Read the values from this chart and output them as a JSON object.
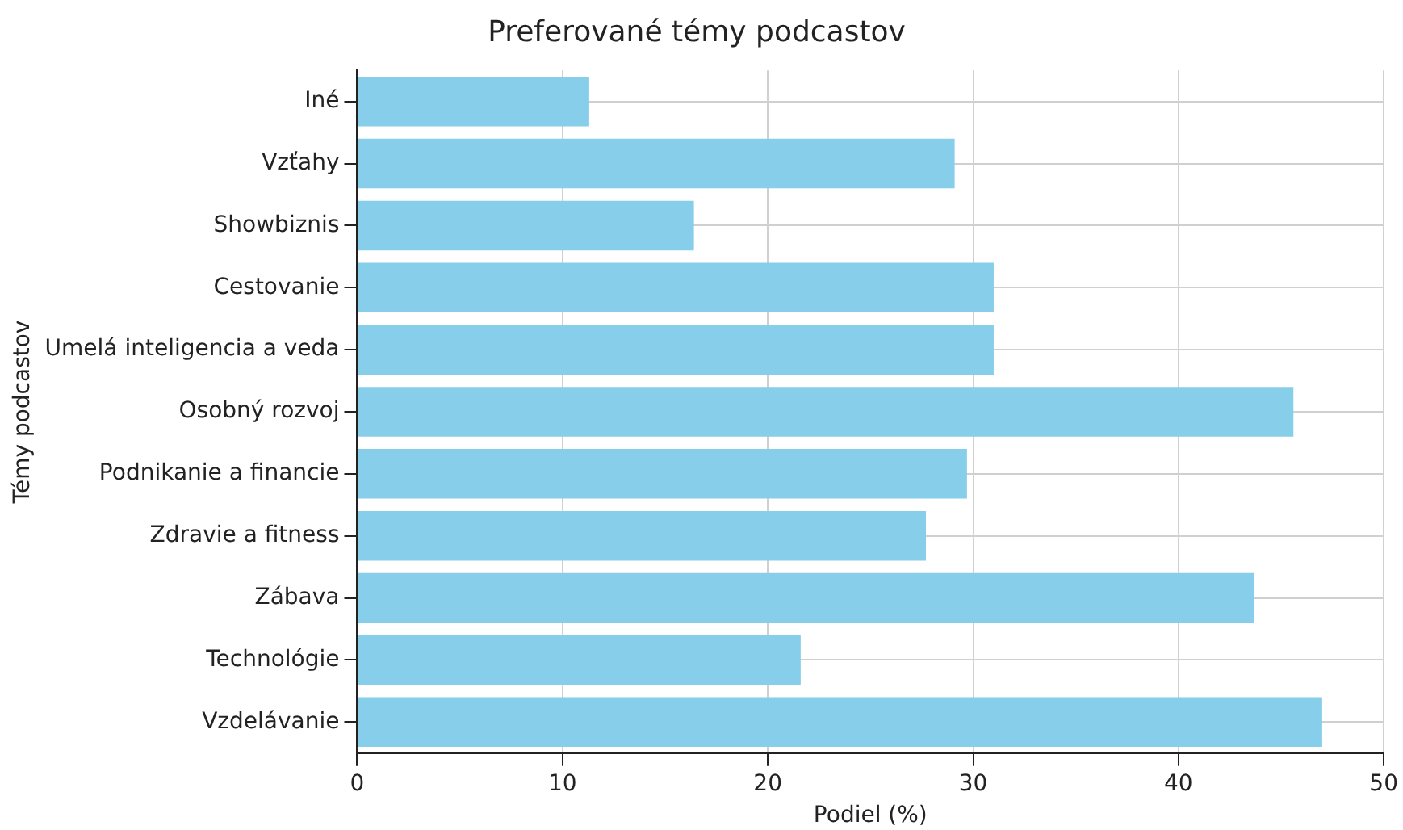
{
  "chart_data": {
    "type": "bar",
    "orientation": "horizontal",
    "title": "Preferované témy podcastov",
    "xlabel": "Podiel (%)",
    "ylabel": "Témy podcastov",
    "categories": [
      "Iné",
      "Vzťahy",
      "Showbiznis",
      "Cestovanie",
      "Umelá inteligencia a veda",
      "Osobný rozvoj",
      "Podnikanie a financie",
      "Zdravie a fitness",
      "Zábava",
      "Technológie",
      "Vzdelávanie"
    ],
    "values": [
      11.3,
      29.1,
      16.4,
      31.0,
      31.0,
      45.6,
      29.7,
      27.7,
      43.7,
      21.6,
      47.0
    ],
    "color": "#87ceeb",
    "xlim": [
      0,
      50
    ],
    "xticks": [
      0,
      10,
      20,
      30,
      40,
      50
    ],
    "grid": true
  }
}
